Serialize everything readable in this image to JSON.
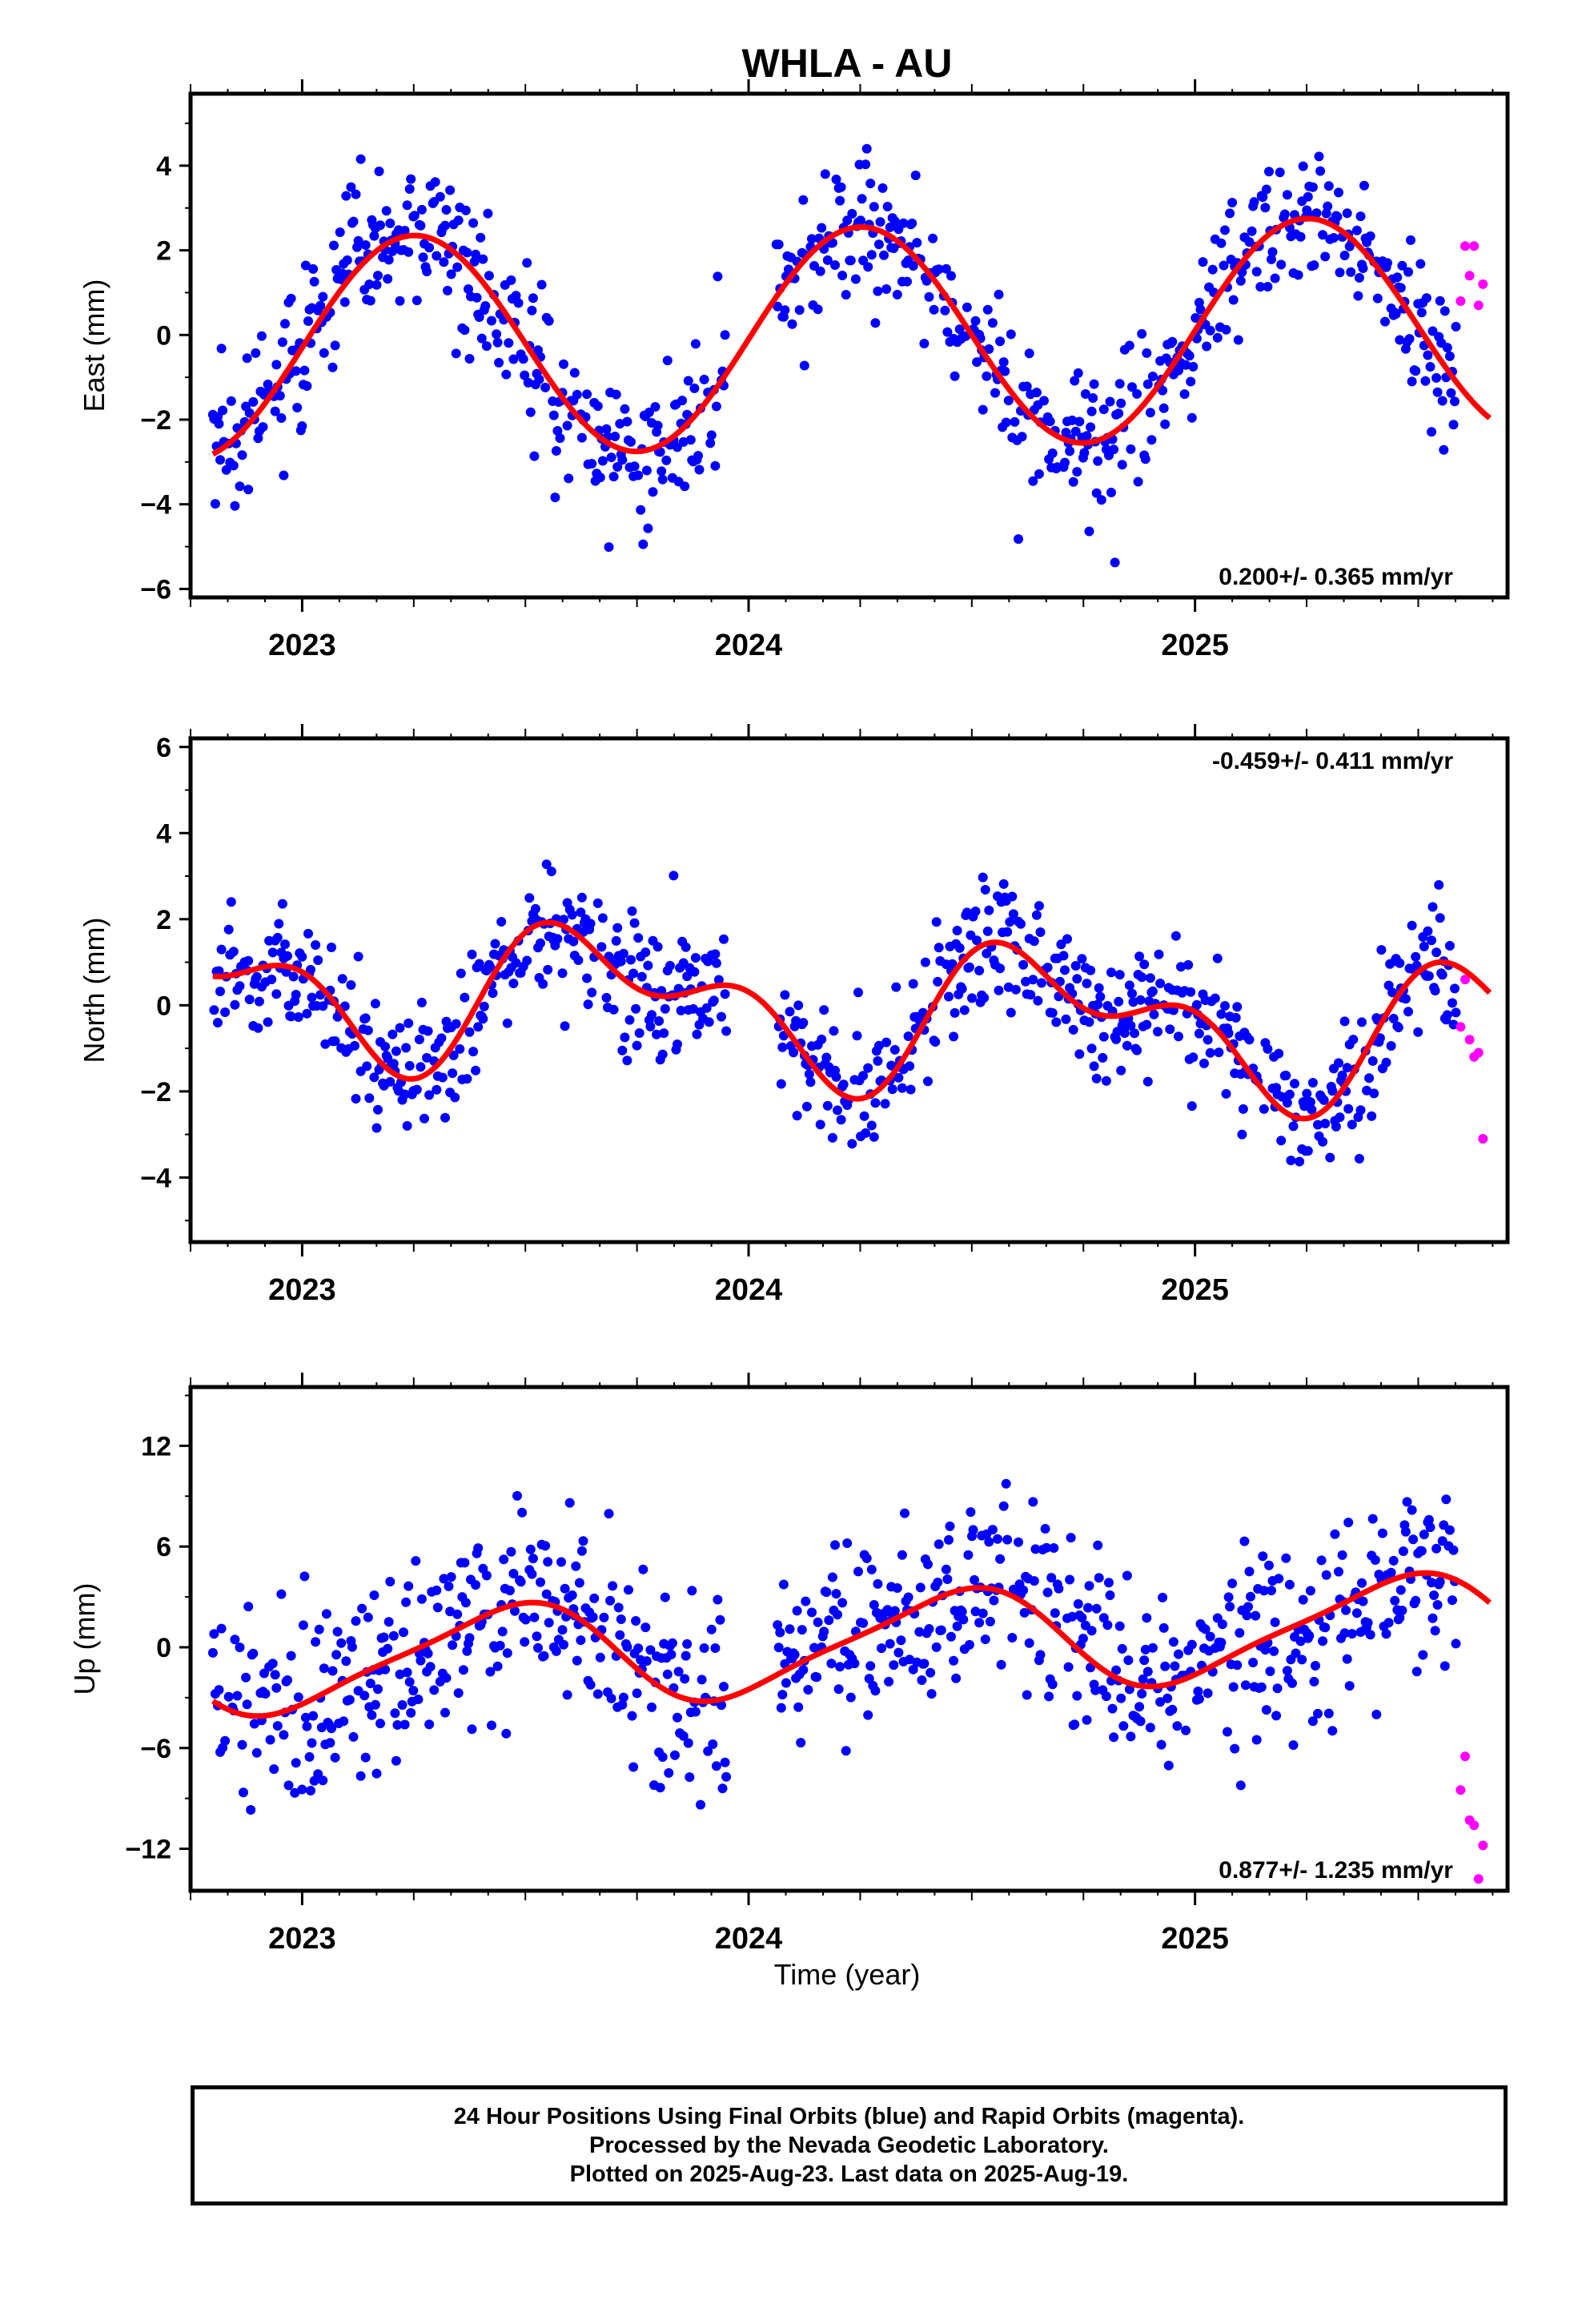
{
  "chart_data": {
    "type": "scatter",
    "title": "WHLA - AU",
    "x_tick_labels": [
      "2023",
      "2024",
      "2025"
    ],
    "xlabel": "Time (year)",
    "xlim": [
      2022.75,
      2025.7
    ],
    "series_legend": {
      "final_orbits_color": "#0000ff",
      "rapid_orbits_color": "#ff00ff",
      "model_fit_color": "#ff0000"
    },
    "panels": [
      {
        "ylabel": "East (mm)",
        "ylim": [
          -6.2,
          5.7
        ],
        "yticks": [
          -6,
          -4,
          -2,
          0,
          2,
          4
        ],
        "ytick_labels": [
          "−6",
          "−4",
          "−2",
          "0",
          "2",
          "4"
        ],
        "rate": "0.200+/- 0.365 mm/yr",
        "rate_position": "bottom-right",
        "model": {
          "offset": -0.1,
          "trend": 0.2,
          "a1": 2.6,
          "ph1": 0.0,
          "a2": 0.0,
          "ph2": 0.0
        },
        "scatter_sd": 0.85,
        "rapid_points": [
          [
            2025.595,
            0.8
          ],
          [
            2025.605,
            2.1
          ],
          [
            2025.615,
            1.4
          ],
          [
            2025.625,
            2.1
          ],
          [
            2025.635,
            0.7
          ],
          [
            2025.645,
            1.2
          ]
        ]
      },
      {
        "ylabel": "North (mm)",
        "ylim": [
          -5.5,
          6.2
        ],
        "yticks": [
          -4,
          -2,
          0,
          2,
          4,
          6
        ],
        "ytick_labels": [
          "−4",
          "−2",
          "0",
          "2",
          "4",
          "6"
        ],
        "rate": "-0.459+/- 0.411 mm/yr",
        "rate_position": "top-right",
        "model": {
          "offset": 0.0,
          "trend": -0.46,
          "a1": 1.3,
          "ph1": 3.6,
          "a2": 0.9,
          "ph2": 1.4
        },
        "scatter_sd": 0.75,
        "rapid_points": [
          [
            2025.595,
            -0.5
          ],
          [
            2025.605,
            0.6
          ],
          [
            2025.615,
            -0.8
          ],
          [
            2025.625,
            -1.2
          ],
          [
            2025.635,
            -1.1
          ],
          [
            2025.645,
            -3.1
          ]
        ]
      },
      {
        "ylabel": "Up (mm)",
        "ylim": [
          -14.5,
          15.5
        ],
        "yticks": [
          -12,
          -6,
          0,
          6,
          12
        ],
        "ytick_labels": [
          "−12",
          "−6",
          "0",
          "6",
          "12"
        ],
        "rate": "0.877+/- 1.235 mm/yr",
        "rate_position": "bottom-right",
        "model": {
          "offset": 0.0,
          "trend": 0.88,
          "a1": 2.9,
          "ph1": -1.3,
          "a2": 0.6,
          "ph2": 0.5
        },
        "scatter_sd": 2.9,
        "rapid_points": [
          [
            2025.595,
            -8.5
          ],
          [
            2025.605,
            -6.5
          ],
          [
            2025.615,
            -10.3
          ],
          [
            2025.625,
            -10.6
          ],
          [
            2025.635,
            -13.8
          ],
          [
            2025.645,
            -11.8
          ]
        ]
      }
    ]
  },
  "caption": {
    "line1": "24 Hour Positions Using Final Orbits (blue) and Rapid Orbits (magenta).",
    "line2": "Processed by the Nevada Geodetic Laboratory.",
    "line3": "Plotted on 2025-Aug-23. Last data on 2025-Aug-19."
  }
}
